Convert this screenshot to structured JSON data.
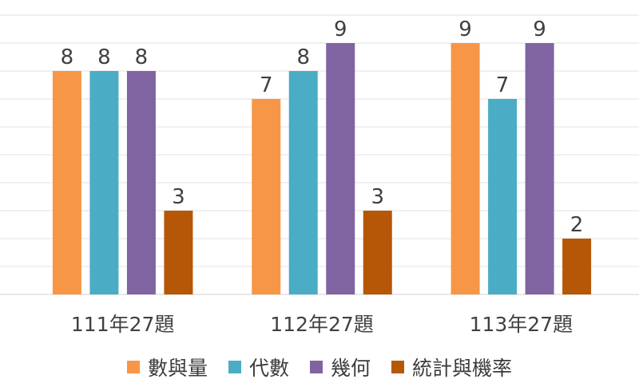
{
  "chart_data": {
    "type": "bar",
    "categories": [
      "111年27題",
      "112年27題",
      "113年27題"
    ],
    "series": [
      {
        "name": "數與量",
        "values": [
          8,
          7,
          9
        ],
        "color": "#F79646"
      },
      {
        "name": "代數",
        "values": [
          8,
          8,
          7
        ],
        "color": "#4BACC6"
      },
      {
        "name": "幾何",
        "values": [
          8,
          9,
          9
        ],
        "color": "#8064A2"
      },
      {
        "name": "統計與機率",
        "values": [
          3,
          3,
          2
        ],
        "color": "#B65708"
      }
    ],
    "title": "",
    "xlabel": "",
    "ylabel": "",
    "ylim": [
      0,
      10
    ],
    "grid": true,
    "legend": "bottom",
    "data_labels": true
  }
}
